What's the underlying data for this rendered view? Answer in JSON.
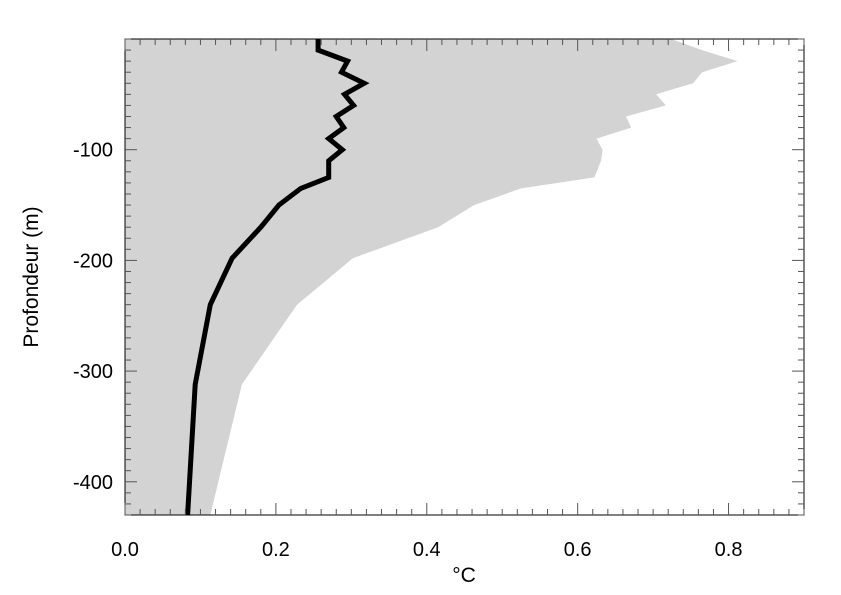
{
  "chart_data": {
    "type": "line",
    "title": "",
    "xlabel": "°C",
    "ylabel": "Profondeur (m)",
    "xlim": [
      0.0,
      0.9
    ],
    "ylim": [
      -430,
      0
    ],
    "x_ticks": [
      0.0,
      0.2,
      0.4,
      0.6,
      0.8
    ],
    "x_tick_labels": [
      "0.0",
      "0.2",
      "0.4",
      "0.6",
      "0.8"
    ],
    "y_ticks": [
      -100,
      -200,
      -300,
      -400
    ],
    "y_tick_labels": [
      "-100",
      "-200",
      "-300",
      "-400"
    ],
    "grid": false,
    "colors": {
      "band": "#d3d3d3",
      "line": "#000000",
      "frame": "#000000"
    },
    "series": [
      {
        "type": "area",
        "x_max": [
          0.724,
          0.765,
          0.812,
          0.765,
          0.753,
          0.704,
          0.717,
          0.664,
          0.671,
          0.625,
          0.633,
          0.631,
          0.622,
          0.525,
          0.463,
          0.415,
          0.302,
          0.228,
          0.155,
          0.113
        ],
        "depth": [
          0,
          -10,
          -20,
          -30,
          -40,
          -50,
          -60,
          -70,
          -80,
          -90,
          -100,
          -110,
          -125,
          -135,
          -150,
          -170,
          -198,
          -240,
          -312,
          -430
        ]
      },
      {
        "type": "line",
        "x": [
          0.256,
          0.256,
          0.295,
          0.287,
          0.317,
          0.291,
          0.303,
          0.28,
          0.29,
          0.27,
          0.288,
          0.27,
          0.27,
          0.233,
          0.204,
          0.18,
          0.142,
          0.113,
          0.093,
          0.083
        ],
        "depth": [
          0,
          -10,
          -20,
          -30,
          -40,
          -50,
          -60,
          -70,
          -80,
          -90,
          -100,
          -110,
          -125,
          -135,
          -150,
          -170,
          -198,
          -240,
          -312,
          -430
        ]
      }
    ]
  }
}
